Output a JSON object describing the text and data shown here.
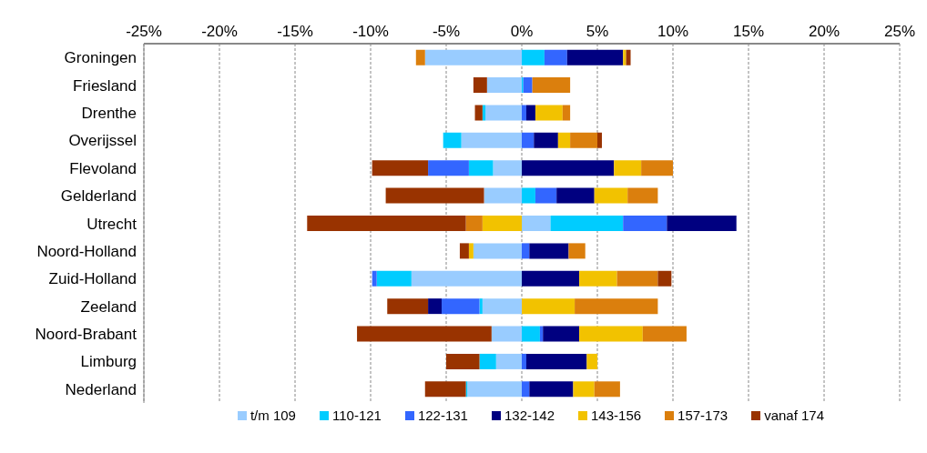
{
  "chart_data": {
    "type": "bar",
    "orientation": "horizontal",
    "stacked": true,
    "categories": [
      "Groningen",
      "Friesland",
      "Drenthe",
      "Overijssel",
      "Flevoland",
      "Gelderland",
      "Utrecht",
      "Noord-Holland",
      "Zuid-Holland",
      "Zeeland",
      "Noord-Brabant",
      "Limburg",
      "Nederland"
    ],
    "series": [
      {
        "name": "t/m 109",
        "color": "#99ccff",
        "values": [
          null,
          null,
          null,
          null,
          null,
          null,
          1.9,
          null,
          null,
          null,
          null,
          null,
          null
        ]
      },
      {
        "name": "110-121",
        "color": "#00ccff",
        "values": [
          1.5,
          0.1,
          null,
          null,
          null,
          0.9,
          4.8,
          null,
          null,
          null,
          1.2,
          null,
          null
        ]
      },
      {
        "name": "122-131",
        "color": "#3366ff",
        "values": [
          1.5,
          0.6,
          0.3,
          0.8,
          null,
          1.4,
          2.9,
          0.5,
          null,
          null,
          0.2,
          0.3,
          0.5
        ]
      },
      {
        "name": "132-142",
        "color": "#000080",
        "values": [
          3.7,
          null,
          0.6,
          1.6,
          6.1,
          2.5,
          4.6,
          2.6,
          3.8,
          null,
          2.4,
          4.0,
          2.9
        ]
      },
      {
        "name": "143-156",
        "color": "#f2c200",
        "values": [
          0.2,
          null,
          1.8,
          0.8,
          1.8,
          2.2,
          null,
          null,
          2.5,
          3.5,
          4.2,
          0.7,
          1.4
        ]
      },
      {
        "name": "157-173",
        "color": "#db7f0d",
        "values": [
          null,
          2.5,
          0.5,
          1.8,
          2.1,
          2.0,
          null,
          1.1,
          2.7,
          5.5,
          2.9,
          null,
          1.7
        ]
      },
      {
        "name": "vanaf 174",
        "color": "#993300",
        "values": [
          0.3,
          null,
          null,
          0.3,
          null,
          null,
          null,
          null,
          0.9,
          null,
          null,
          null,
          null
        ]
      },
      {
        "color": "#99ccff",
        "values": [
          -6.4,
          -2.3,
          -2.4,
          -4.0,
          -1.9,
          -2.5,
          null,
          -3.2,
          -7.3,
          -2.6,
          -2.0,
          -1.7,
          -3.6
        ]
      },
      {
        "color": "#00ccff",
        "values": [
          null,
          null,
          -0.2,
          -1.2,
          -1.6,
          null,
          null,
          null,
          -2.3,
          -0.2,
          null,
          -1.1,
          -0.1
        ]
      },
      {
        "color": "#3366ff",
        "values": [
          null,
          null,
          null,
          null,
          -2.7,
          null,
          null,
          null,
          -0.3,
          -2.5,
          null,
          null,
          null
        ]
      },
      {
        "color": "#000080",
        "values": [
          null,
          null,
          null,
          null,
          null,
          null,
          null,
          null,
          null,
          -0.9,
          null,
          null,
          null
        ]
      },
      {
        "color": "#f2c200",
        "values": [
          null,
          null,
          null,
          null,
          null,
          null,
          -2.6,
          -0.3,
          null,
          null,
          null,
          null,
          null
        ]
      },
      {
        "color": "#db7f0d",
        "values": [
          -0.6,
          null,
          null,
          null,
          null,
          null,
          -1.1,
          null,
          null,
          null,
          null,
          null,
          null
        ]
      },
      {
        "color": "#993300",
        "values": [
          null,
          -0.9,
          -0.5,
          null,
          -3.7,
          -6.5,
          -10.5,
          -0.6,
          null,
          -2.7,
          -8.9,
          -2.2,
          -2.7
        ]
      }
    ],
    "xlim": [
      -25,
      25
    ],
    "xticks": [
      {
        "value": -25,
        "label": "-25%"
      },
      {
        "value": -20,
        "label": "-20%"
      },
      {
        "value": -15,
        "label": "-15%"
      },
      {
        "value": -10,
        "label": "-10%"
      },
      {
        "value": -5,
        "label": "-5%"
      },
      {
        "value": 0,
        "label": "0%"
      },
      {
        "value": 5,
        "label": "5%"
      },
      {
        "value": 10,
        "label": "10%"
      },
      {
        "value": 15,
        "label": "15%"
      },
      {
        "value": 20,
        "label": "20%"
      },
      {
        "value": 25,
        "label": "25%"
      }
    ],
    "grid": "x",
    "legend": "bottom"
  }
}
